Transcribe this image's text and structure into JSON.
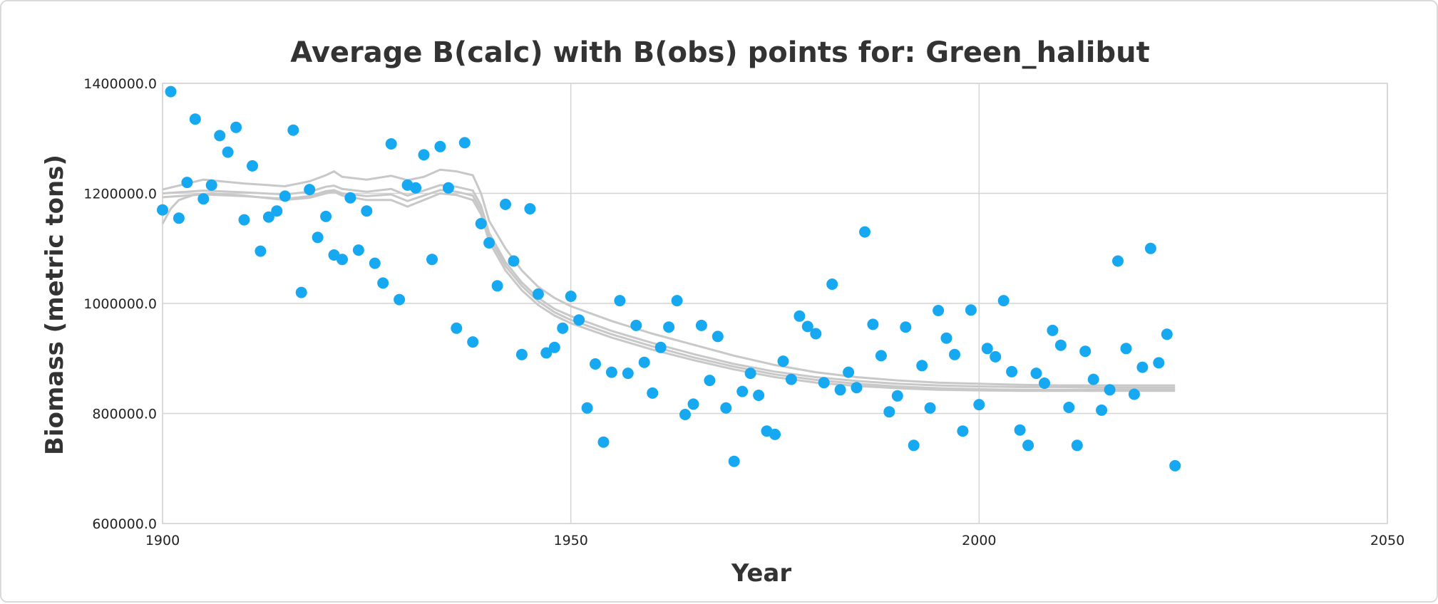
{
  "chart_data": {
    "type": "scatter",
    "title": "Average B(calc) with B(obs) points for: Green_halibut",
    "xlabel": "Year",
    "ylabel": "Biomass (metric tons)",
    "xlim": [
      1900,
      2050
    ],
    "ylim": [
      600000,
      1400000
    ],
    "x_ticks": [
      "1900",
      "1950",
      "2000",
      "2050"
    ],
    "y_ticks": [
      "600000.0",
      "800000.0",
      "1000000.0",
      "1200000.0",
      "1400000.0"
    ],
    "grid": true,
    "legend": "none",
    "colors": {
      "obs": "#16a9f2",
      "calc": "#c8c8c8",
      "grid": "#d4d4d4"
    },
    "series": [
      {
        "type": "scatter",
        "points": [
          [
            1900,
            1170000
          ],
          [
            1901,
            1385000
          ],
          [
            1902,
            1155000
          ],
          [
            1903,
            1220000
          ],
          [
            1904,
            1335000
          ],
          [
            1905,
            1190000
          ],
          [
            1906,
            1215000
          ],
          [
            1907,
            1305000
          ],
          [
            1908,
            1275000
          ],
          [
            1909,
            1320000
          ],
          [
            1910,
            1152000
          ],
          [
            1911,
            1250000
          ],
          [
            1912,
            1095000
          ],
          [
            1913,
            1157000
          ],
          [
            1914,
            1168000
          ],
          [
            1915,
            1195000
          ],
          [
            1916,
            1315000
          ],
          [
            1917,
            1020000
          ],
          [
            1918,
            1207000
          ],
          [
            1919,
            1120000
          ],
          [
            1920,
            1158000
          ],
          [
            1921,
            1088000
          ],
          [
            1922,
            1080000
          ],
          [
            1923,
            1192000
          ],
          [
            1924,
            1097000
          ],
          [
            1925,
            1168000
          ],
          [
            1926,
            1073000
          ],
          [
            1927,
            1037000
          ],
          [
            1928,
            1290000
          ],
          [
            1929,
            1007000
          ],
          [
            1930,
            1215000
          ],
          [
            1931,
            1210000
          ],
          [
            1932,
            1270000
          ],
          [
            1933,
            1080000
          ],
          [
            1934,
            1285000
          ],
          [
            1935,
            1210000
          ],
          [
            1936,
            955000
          ],
          [
            1937,
            1292000
          ],
          [
            1938,
            930000
          ],
          [
            1939,
            1145000
          ],
          [
            1940,
            1110000
          ],
          [
            1941,
            1032000
          ],
          [
            1942,
            1180000
          ],
          [
            1943,
            1077000
          ],
          [
            1944,
            907000
          ],
          [
            1945,
            1172000
          ],
          [
            1946,
            1017000
          ],
          [
            1947,
            910000
          ],
          [
            1948,
            920000
          ],
          [
            1949,
            955000
          ],
          [
            1950,
            1013000
          ],
          [
            1951,
            970000
          ],
          [
            1952,
            810000
          ],
          [
            1953,
            890000
          ],
          [
            1954,
            748000
          ],
          [
            1955,
            875000
          ],
          [
            1956,
            1005000
          ],
          [
            1957,
            873000
          ],
          [
            1958,
            960000
          ],
          [
            1959,
            893000
          ],
          [
            1960,
            837000
          ],
          [
            1961,
            920000
          ],
          [
            1962,
            957000
          ],
          [
            1963,
            1005000
          ],
          [
            1964,
            798000
          ],
          [
            1965,
            817000
          ],
          [
            1966,
            960000
          ],
          [
            1967,
            860000
          ],
          [
            1968,
            940000
          ],
          [
            1969,
            810000
          ],
          [
            1970,
            713000
          ],
          [
            1971,
            840000
          ],
          [
            1972,
            873000
          ],
          [
            1973,
            833000
          ],
          [
            1974,
            768000
          ],
          [
            1975,
            762000
          ],
          [
            1976,
            895000
          ],
          [
            1977,
            862000
          ],
          [
            1978,
            977000
          ],
          [
            1979,
            958000
          ],
          [
            1980,
            945000
          ],
          [
            1981,
            856000
          ],
          [
            1982,
            1035000
          ],
          [
            1983,
            843000
          ],
          [
            1984,
            875000
          ],
          [
            1985,
            847000
          ],
          [
            1986,
            1130000
          ],
          [
            1987,
            962000
          ],
          [
            1988,
            905000
          ],
          [
            1989,
            803000
          ],
          [
            1990,
            832000
          ],
          [
            1991,
            957000
          ],
          [
            1992,
            742000
          ],
          [
            1993,
            887000
          ],
          [
            1994,
            810000
          ],
          [
            1995,
            987000
          ],
          [
            1996,
            937000
          ],
          [
            1997,
            907000
          ],
          [
            1998,
            768000
          ],
          [
            1999,
            988000
          ],
          [
            2000,
            816000
          ],
          [
            2001,
            918000
          ],
          [
            2002,
            903000
          ],
          [
            2003,
            1005000
          ],
          [
            2004,
            876000
          ],
          [
            2005,
            770000
          ],
          [
            2006,
            742000
          ],
          [
            2007,
            873000
          ],
          [
            2008,
            855000
          ],
          [
            2009,
            951000
          ],
          [
            2010,
            924000
          ],
          [
            2011,
            811000
          ],
          [
            2012,
            742000
          ],
          [
            2013,
            913000
          ],
          [
            2014,
            862000
          ],
          [
            2015,
            806000
          ],
          [
            2016,
            843000
          ],
          [
            2017,
            1077000
          ],
          [
            2018,
            918000
          ],
          [
            2019,
            835000
          ],
          [
            2020,
            884000
          ],
          [
            2021,
            1100000
          ],
          [
            2022,
            892000
          ],
          [
            2023,
            944000
          ],
          [
            2024,
            705000
          ]
        ]
      },
      {
        "type": "line",
        "points": [
          [
            1900,
            1207000
          ],
          [
            1905,
            1225000
          ],
          [
            1910,
            1218000
          ],
          [
            1915,
            1213000
          ],
          [
            1918,
            1222000
          ],
          [
            1920,
            1233000
          ],
          [
            1921,
            1240000
          ],
          [
            1922,
            1230000
          ],
          [
            1925,
            1225000
          ],
          [
            1928,
            1232000
          ],
          [
            1930,
            1224000
          ],
          [
            1932,
            1230000
          ],
          [
            1934,
            1243000
          ],
          [
            1936,
            1240000
          ],
          [
            1938,
            1233000
          ],
          [
            1939,
            1200000
          ],
          [
            1940,
            1150000
          ],
          [
            1942,
            1100000
          ],
          [
            1944,
            1060000
          ],
          [
            1946,
            1030000
          ],
          [
            1948,
            1010000
          ],
          [
            1950,
            995000
          ],
          [
            1955,
            968000
          ],
          [
            1960,
            945000
          ],
          [
            1965,
            925000
          ],
          [
            1970,
            905000
          ],
          [
            1975,
            888000
          ],
          [
            1980,
            875000
          ],
          [
            1985,
            866000
          ],
          [
            1990,
            860000
          ],
          [
            1995,
            856000
          ],
          [
            2000,
            854000
          ],
          [
            2005,
            852000
          ],
          [
            2010,
            851000
          ],
          [
            2015,
            851000
          ],
          [
            2020,
            851000
          ],
          [
            2024,
            851000
          ]
        ]
      },
      {
        "type": "line",
        "points": [
          [
            1900,
            1200000
          ],
          [
            1905,
            1205000
          ],
          [
            1910,
            1202000
          ],
          [
            1915,
            1198000
          ],
          [
            1918,
            1203000
          ],
          [
            1920,
            1212000
          ],
          [
            1921,
            1214000
          ],
          [
            1922,
            1208000
          ],
          [
            1925,
            1203000
          ],
          [
            1928,
            1208000
          ],
          [
            1930,
            1196000
          ],
          [
            1932,
            1205000
          ],
          [
            1934,
            1215000
          ],
          [
            1936,
            1212000
          ],
          [
            1938,
            1205000
          ],
          [
            1939,
            1178000
          ],
          [
            1940,
            1128000
          ],
          [
            1942,
            1075000
          ],
          [
            1944,
            1038000
          ],
          [
            1946,
            1010000
          ],
          [
            1948,
            990000
          ],
          [
            1950,
            977000
          ],
          [
            1955,
            950000
          ],
          [
            1960,
            928000
          ],
          [
            1965,
            908000
          ],
          [
            1970,
            890000
          ],
          [
            1975,
            876000
          ],
          [
            1980,
            866000
          ],
          [
            1985,
            859000
          ],
          [
            1990,
            854000
          ],
          [
            1995,
            851000
          ],
          [
            2000,
            849000
          ],
          [
            2005,
            848000
          ],
          [
            2010,
            848000
          ],
          [
            2015,
            847000
          ],
          [
            2020,
            847000
          ],
          [
            2024,
            847000
          ]
        ]
      },
      {
        "type": "line",
        "points": [
          [
            1900,
            1193000
          ],
          [
            1905,
            1198000
          ],
          [
            1910,
            1195000
          ],
          [
            1915,
            1190000
          ],
          [
            1918,
            1195000
          ],
          [
            1920,
            1204000
          ],
          [
            1921,
            1206000
          ],
          [
            1922,
            1200000
          ],
          [
            1925,
            1195000
          ],
          [
            1928,
            1198000
          ],
          [
            1930,
            1186000
          ],
          [
            1932,
            1196000
          ],
          [
            1934,
            1206000
          ],
          [
            1936,
            1203000
          ],
          [
            1938,
            1196000
          ],
          [
            1939,
            1170000
          ],
          [
            1940,
            1120000
          ],
          [
            1942,
            1068000
          ],
          [
            1944,
            1032000
          ],
          [
            1946,
            1004000
          ],
          [
            1948,
            984000
          ],
          [
            1950,
            970000
          ],
          [
            1955,
            944000
          ],
          [
            1960,
            922000
          ],
          [
            1965,
            902000
          ],
          [
            1970,
            885000
          ],
          [
            1975,
            871000
          ],
          [
            1980,
            861000
          ],
          [
            1985,
            854000
          ],
          [
            1990,
            849000
          ],
          [
            1995,
            846000
          ],
          [
            2000,
            844000
          ],
          [
            2005,
            843000
          ],
          [
            2010,
            843000
          ],
          [
            2015,
            843000
          ],
          [
            2020,
            843000
          ],
          [
            2024,
            843000
          ]
        ]
      },
      {
        "type": "line",
        "points": [
          [
            1900,
            1145000
          ],
          [
            1901,
            1172000
          ],
          [
            1902,
            1188000
          ],
          [
            1904,
            1198000
          ],
          [
            1906,
            1200000
          ],
          [
            1910,
            1196000
          ],
          [
            1915,
            1188000
          ],
          [
            1918,
            1192000
          ],
          [
            1920,
            1200000
          ],
          [
            1921,
            1203000
          ],
          [
            1922,
            1196000
          ],
          [
            1925,
            1188000
          ],
          [
            1928,
            1188000
          ],
          [
            1930,
            1176000
          ],
          [
            1932,
            1188000
          ],
          [
            1934,
            1200000
          ],
          [
            1936,
            1197000
          ],
          [
            1938,
            1188000
          ],
          [
            1939,
            1162000
          ],
          [
            1940,
            1112000
          ],
          [
            1942,
            1060000
          ],
          [
            1944,
            1024000
          ],
          [
            1946,
            997000
          ],
          [
            1948,
            978000
          ],
          [
            1950,
            964000
          ],
          [
            1955,
            938000
          ],
          [
            1960,
            916000
          ],
          [
            1965,
            897000
          ],
          [
            1970,
            880000
          ],
          [
            1975,
            866000
          ],
          [
            1980,
            856000
          ],
          [
            1985,
            850000
          ],
          [
            1990,
            846000
          ],
          [
            1995,
            843000
          ],
          [
            2000,
            842000
          ],
          [
            2005,
            841000
          ],
          [
            2010,
            841000
          ],
          [
            2015,
            841000
          ],
          [
            2020,
            841000
          ],
          [
            2024,
            841000
          ]
        ]
      }
    ]
  }
}
